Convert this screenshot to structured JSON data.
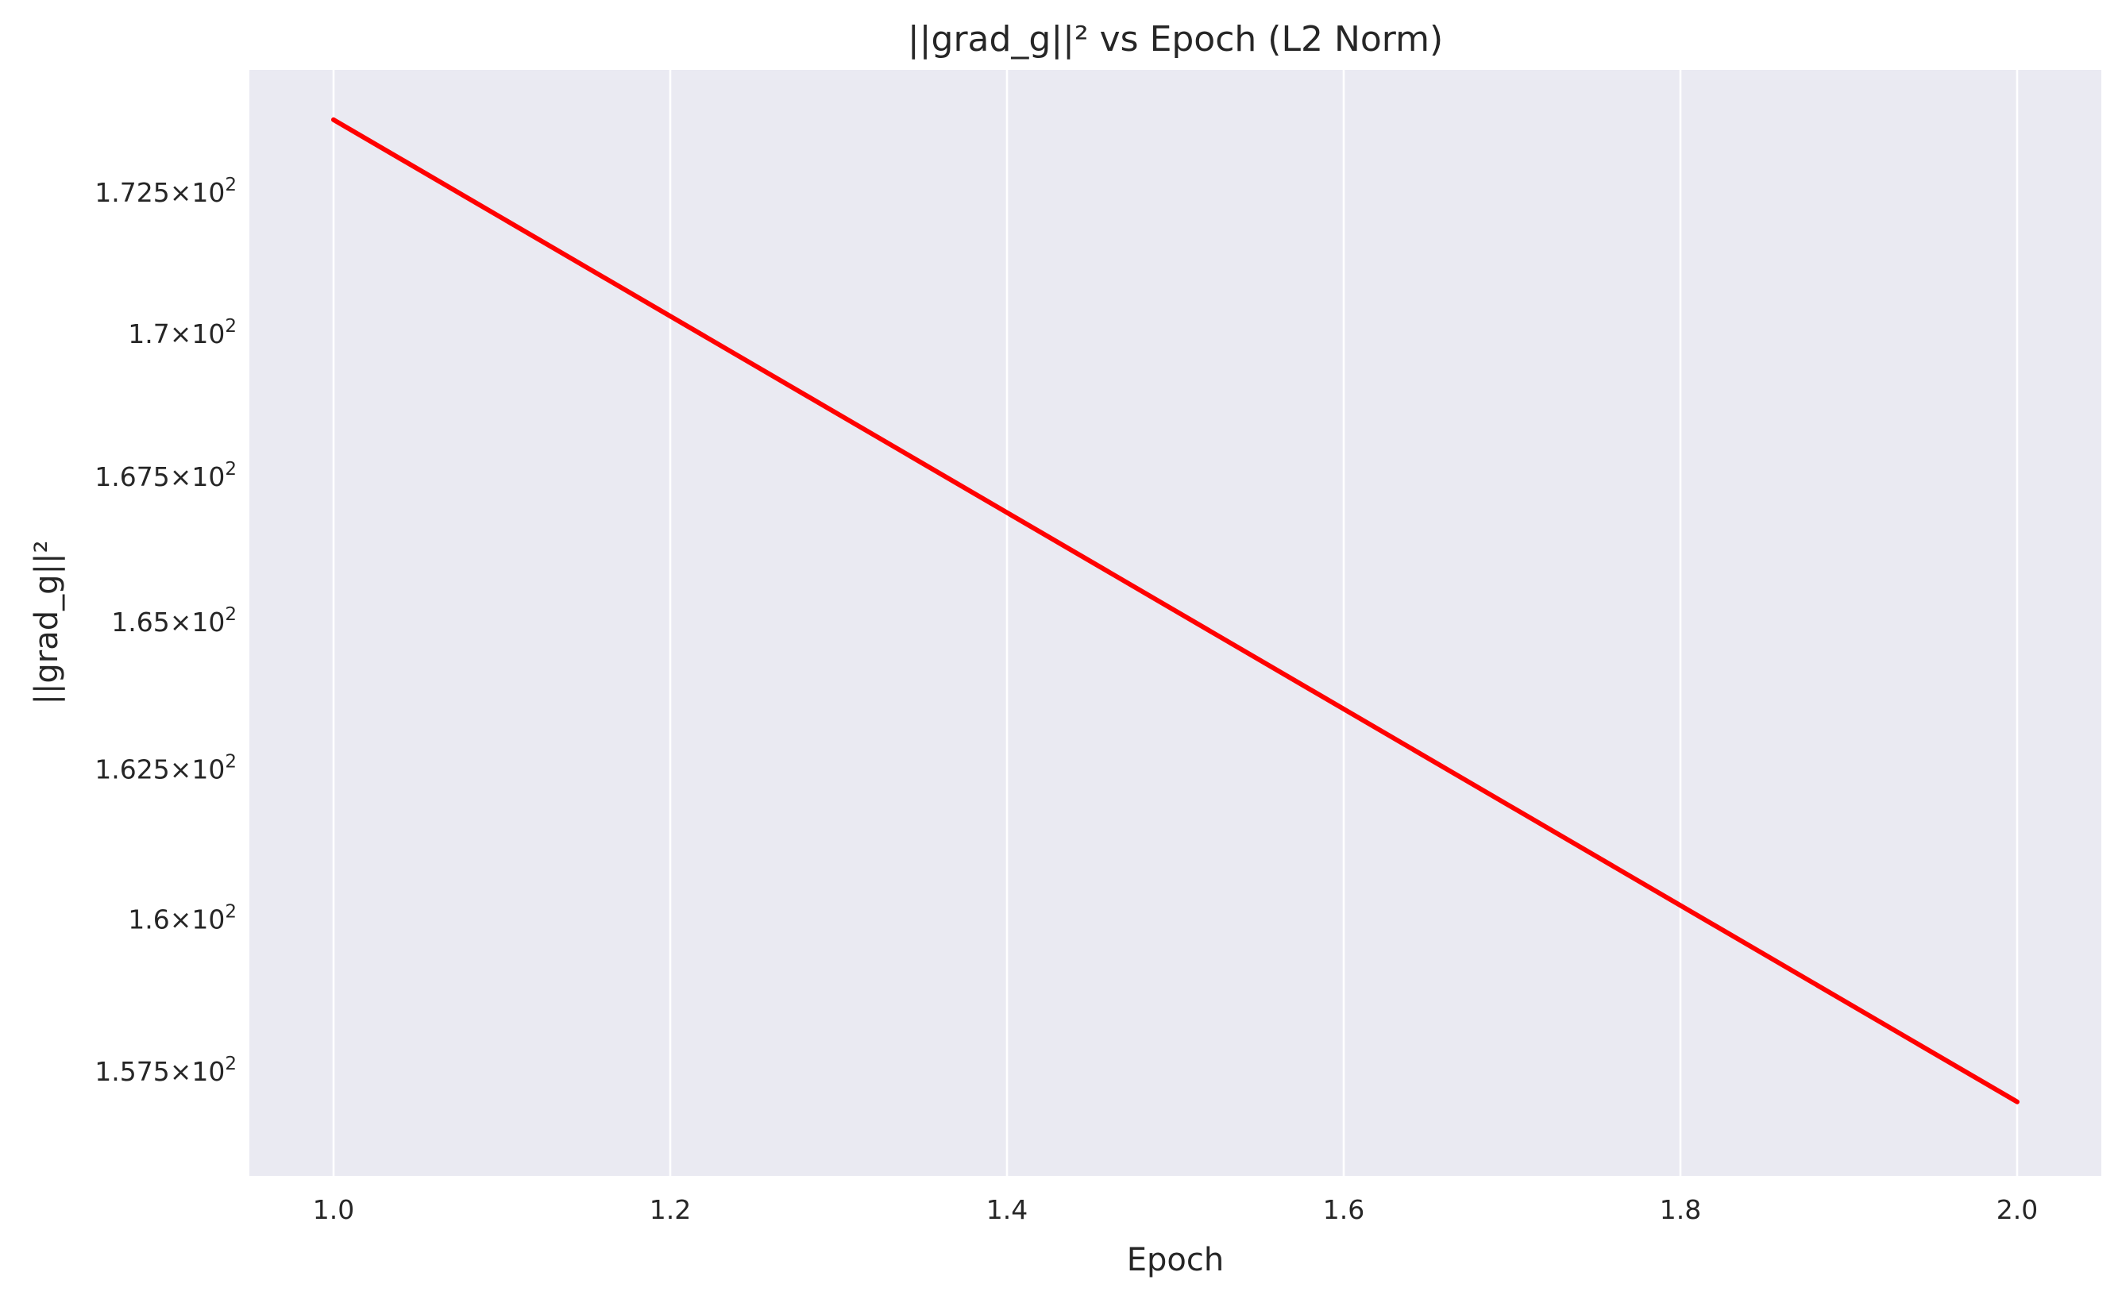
{
  "chart_data": {
    "type": "line",
    "title": "||grad_g||² vs Epoch (L2 Norm)",
    "xlabel": "Epoch",
    "ylabel": "||grad_g||²",
    "xlim": [
      0.95,
      2.05
    ],
    "ylim": [
      155.8,
      174.7
    ],
    "yscale": "log",
    "grid": true,
    "x_ticks": [
      1.0,
      1.2,
      1.4,
      1.6,
      1.8,
      2.0
    ],
    "x_tick_labels": [
      "1.0",
      "1.2",
      "1.4",
      "1.6",
      "1.8",
      "2.0"
    ],
    "y_ticks": [
      157.5,
      160,
      162.5,
      165,
      167.5,
      170,
      172.5
    ],
    "y_tick_labels": [
      {
        "mantissa": "1.575",
        "times": "×",
        "base": "10",
        "exp": "2"
      },
      {
        "mantissa": "1.6",
        "times": "×",
        "base": "10",
        "exp": "2"
      },
      {
        "mantissa": "1.625",
        "times": "×",
        "base": "10",
        "exp": "2"
      },
      {
        "mantissa": "1.65",
        "times": "×",
        "base": "10",
        "exp": "2"
      },
      {
        "mantissa": "1.675",
        "times": "×",
        "base": "10",
        "exp": "2"
      },
      {
        "mantissa": "1.7",
        "times": "×",
        "base": "10",
        "exp": "2"
      },
      {
        "mantissa": "1.725",
        "times": "×",
        "base": "10",
        "exp": "2"
      }
    ],
    "series": [
      {
        "color": "#ff0000",
        "x": [
          1,
          2
        ],
        "y": [
          173.8,
          157.0
        ]
      }
    ]
  },
  "colors": {
    "plot_background": "#eaeaf2",
    "grid": "#ffffff",
    "text": "#262626",
    "line": "#ff0000"
  }
}
